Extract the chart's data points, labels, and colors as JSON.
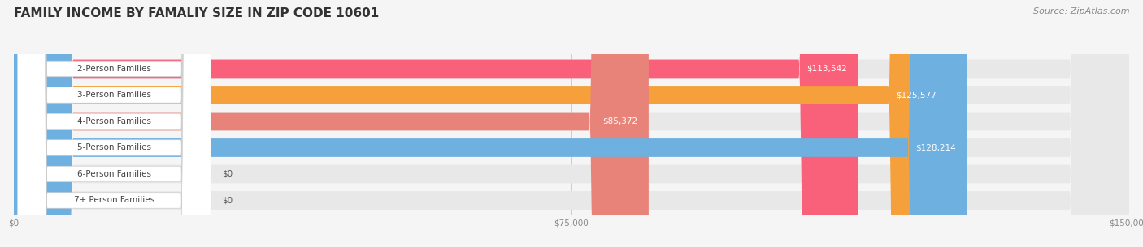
{
  "title": "FAMILY INCOME BY FAMALIY SIZE IN ZIP CODE 10601",
  "source": "Source: ZipAtlas.com",
  "categories": [
    "2-Person Families",
    "3-Person Families",
    "4-Person Families",
    "5-Person Families",
    "6-Person Families",
    "7+ Person Families"
  ],
  "values": [
    113542,
    125577,
    85372,
    128214,
    0,
    0
  ],
  "bar_colors": [
    "#F9607A",
    "#F5A03A",
    "#E8837A",
    "#6EB0E0",
    "#C5A0D8",
    "#6EC8C8"
  ],
  "xlim": [
    0,
    150000
  ],
  "xtick_labels": [
    "$0",
    "$75,000",
    "$150,000"
  ],
  "background_color": "#f5f5f5",
  "bar_bg_color": "#e8e8e8",
  "title_fontsize": 11,
  "label_fontsize": 7.5,
  "value_fontsize": 7.5,
  "source_fontsize": 8
}
